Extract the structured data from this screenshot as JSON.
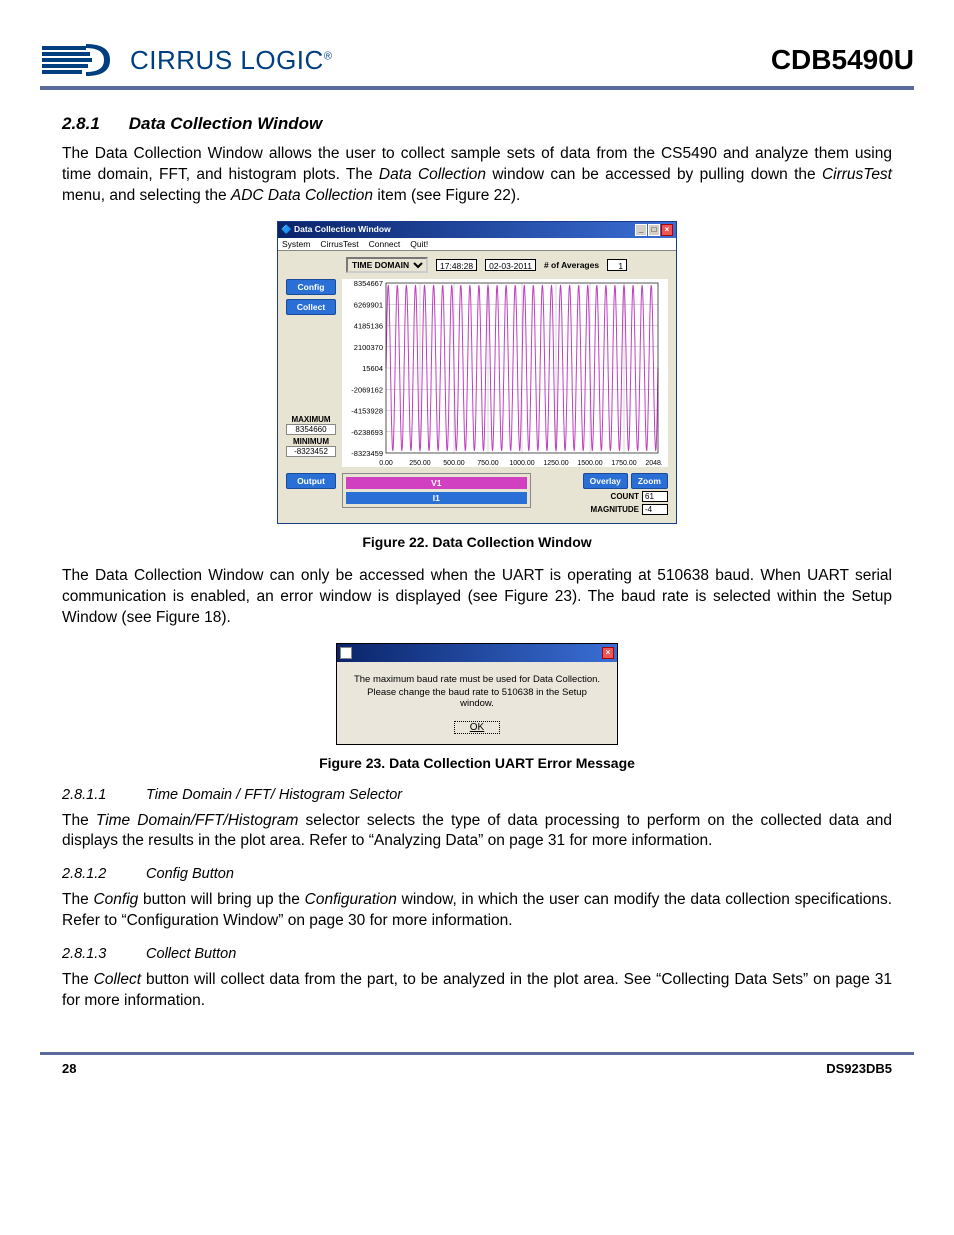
{
  "header": {
    "logo_text": "CIRRUS LOGIC",
    "logo_color": "#003f7f",
    "doc_name": "CDB5490U"
  },
  "rule_color": "#5a6a9a",
  "section": {
    "num": "2.8.1",
    "title": "Data Collection Window",
    "para1_before": "The Data Collection Window allows the user to collect sample sets of data from the CS5490 and analyze them using time domain, FFT, and histogram plots. The ",
    "para1_italic1": "Data Collection",
    "para1_after1": " window can be accessed by pulling down the ",
    "para1_italic2": "CirrusTest",
    "para1_after2": " menu, and selecting the ",
    "para1_italic3": "ADC Data Collection",
    "para1_after3": " item (see Figure 22).",
    "fig22_caption": "Figure 22.  Data Collection Window",
    "para2": "The Data Collection Window can only be accessed when the UART is operating at 510638 baud. When UART serial communication is enabled, an error window is displayed (see Figure 23). The baud rate is selected within the Setup Window (see Figure 18).",
    "fig23_caption": "Figure 23.  Data Collection UART Error Message"
  },
  "sub1": {
    "num": "2.8.1.1",
    "title": "Time Domain / FFT/ Histogram Selector",
    "para_before": "The ",
    "para_italic": "Time Domain/FFT/Histogram",
    "para_after": " selector selects the type of data processing to perform on the collected data and displays the results in the plot area. Refer to “Analyzing Data” on page 31 for more information."
  },
  "sub2": {
    "num": "2.8.1.2",
    "title": "Config Button",
    "para_before": "The ",
    "para_italic1": "Config",
    "para_mid": " button will bring up the ",
    "para_italic2": "Configuration",
    "para_after": " window, in which the user can modify the data collection specifications. Refer to “Configuration Window” on page 30 for more information."
  },
  "sub3": {
    "num": "2.8.1.3",
    "title": "Collect Button",
    "para_before": "The ",
    "para_italic": "Collect",
    "para_after": " button will collect data from the part, to be analyzed in the plot area. See “Collecting Data Sets” on page 31 for more information."
  },
  "footer": {
    "page": "28",
    "doc": "DS923DB5"
  },
  "win1": {
    "title": "Data Collection Window",
    "menus": [
      "System",
      "CirrusTest",
      "Connect",
      "Quit!"
    ],
    "selector": "TIME DOMAIN",
    "time": "17:48:28",
    "date": "02-03-2011",
    "avg_label": "# of Averages",
    "avg_value": "1",
    "side_buttons": {
      "config": "Config",
      "collect": "Collect",
      "output": "Output"
    },
    "stats": {
      "max_label": "MAXIMUM",
      "max_value": "8354660",
      "min_label": "MINIMUM",
      "min_value": "-8323452"
    },
    "plot": {
      "y_ticks": [
        "8354667",
        "6269901",
        "4185136",
        "2100370",
        "15604",
        "-2069162",
        "-4153928",
        "-6238693",
        "-8323459"
      ],
      "x_ticks": [
        "0.00",
        "250.00",
        "500.00",
        "750.00",
        "1000.00",
        "1250.00",
        "1500.00",
        "1750.00",
        "2048.00"
      ],
      "line_color": "#c040c0",
      "grid_color": "#b0b0b0",
      "bg_color": "#ffffff",
      "xlim": [
        0,
        2048
      ],
      "ylim": [
        -8323459,
        8354667
      ],
      "cycles": 30
    },
    "channels": {
      "v_label": "V1",
      "v_color": "#d040c0",
      "i_label": "I1",
      "i_color": "#2a6fd6"
    },
    "overlay_btn": "Overlay",
    "zoom_btn": "Zoom",
    "count_label": "COUNT",
    "count_value": "61",
    "mag_label": "MAGNITUDE",
    "mag_value": "-4"
  },
  "dlg": {
    "line1": "The maximum baud rate must be used for Data Collection.",
    "line2": "Please change the baud rate to 510638 in the Setup window.",
    "ok": "OK"
  }
}
